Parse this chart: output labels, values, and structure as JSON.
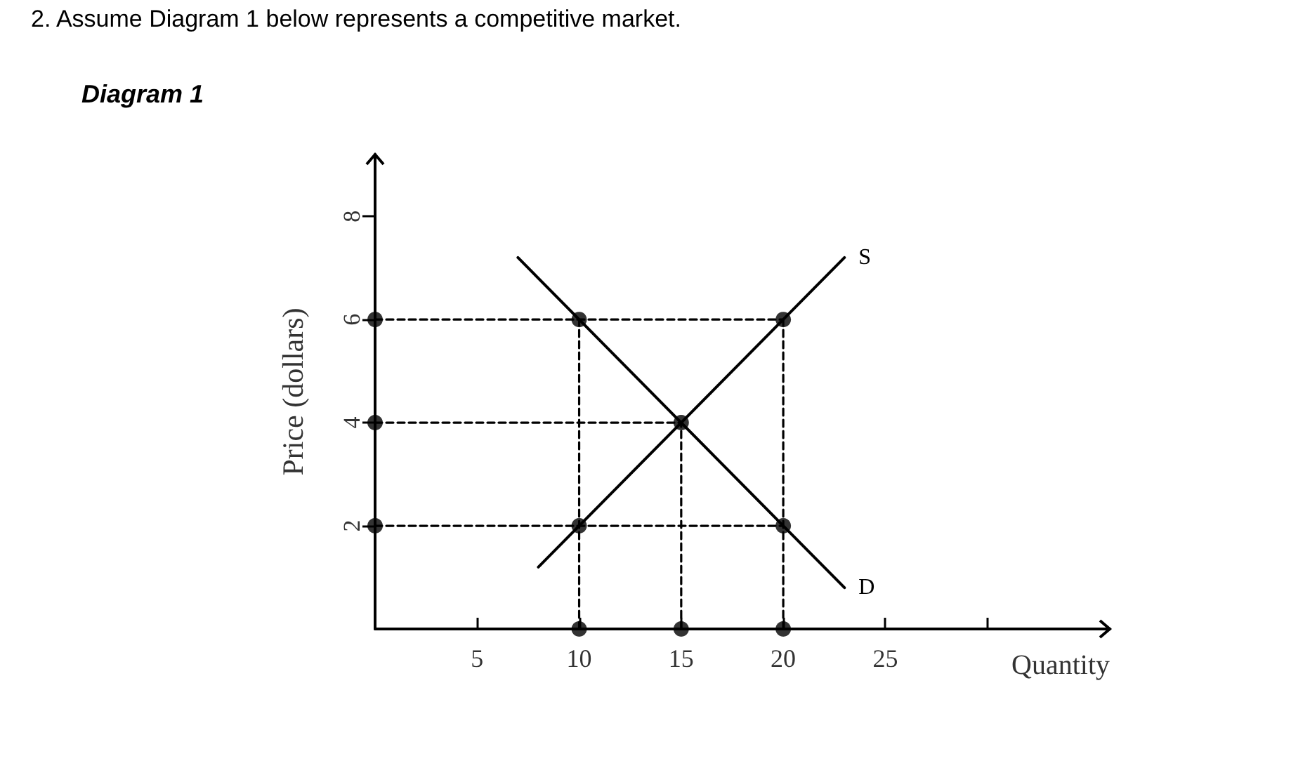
{
  "chart_data": {
    "type": "line",
    "title": "2. Assume Diagram 1 below represents a competitive market.",
    "subtitle": "Diagram 1",
    "xlabel": "Quantity",
    "ylabel": "Price (dollars)",
    "xlim": [
      0,
      36
    ],
    "ylim": [
      0,
      9.2
    ],
    "xticks": [
      5,
      10,
      15,
      20,
      25,
      {
        "value": 30,
        "label": null
      }
    ],
    "yticks": [
      2,
      4,
      6,
      8
    ],
    "grid": false,
    "series": [
      {
        "name": "S",
        "color": "#000000",
        "marker": "none",
        "line_style": "solid",
        "x": [
          8,
          23
        ],
        "values": [
          1.2,
          7.2
        ]
      },
      {
        "name": "D",
        "color": "#000000",
        "marker": "none",
        "line_style": "solid",
        "x": [
          7,
          23
        ],
        "values": [
          7.2,
          0.8
        ]
      },
      {
        "color": "#000000",
        "marker": "none",
        "line_style": "dashed",
        "x": [
          0,
          20
        ],
        "values": [
          6,
          6
        ]
      },
      {
        "color": "#000000",
        "marker": "none",
        "line_style": "dashed",
        "x": [
          0,
          15
        ],
        "values": [
          4,
          4
        ]
      },
      {
        "color": "#000000",
        "marker": "none",
        "line_style": "dashed",
        "x": [
          0,
          20
        ],
        "values": [
          2,
          2
        ]
      },
      {
        "color": "#000000",
        "marker": "none",
        "line_style": "dashed",
        "x": [
          10,
          10
        ],
        "values": [
          0,
          6
        ]
      },
      {
        "color": "#000000",
        "marker": "none",
        "line_style": "dashed",
        "x": [
          15,
          15
        ],
        "values": [
          0,
          4
        ]
      },
      {
        "color": "#000000",
        "marker": "none",
        "line_style": "dashed",
        "x": [
          20,
          20
        ],
        "values": [
          0,
          6
        ]
      },
      {
        "type": "scatter",
        "color": "#000000",
        "marker": "circle",
        "x": [
          0,
          0,
          0,
          10,
          15,
          20,
          10,
          20,
          15,
          10,
          20
        ],
        "values": [
          6,
          4,
          2,
          0,
          0,
          0,
          6,
          6,
          4,
          2,
          2
        ]
      }
    ]
  }
}
